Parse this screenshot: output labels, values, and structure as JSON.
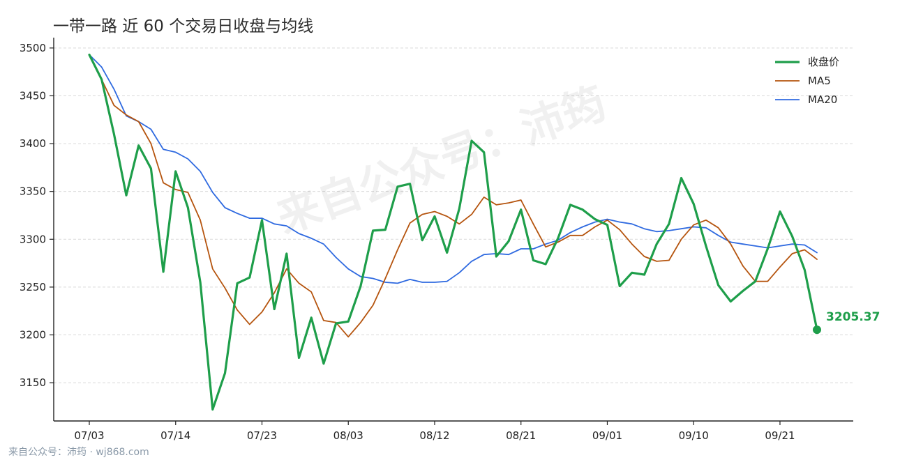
{
  "chart_data": {
    "type": "line",
    "title": "一带一路 近 60 个交易日收盘与均线",
    "xlabel": "",
    "ylabel": "",
    "ylim": [
      3110,
      3505
    ],
    "yticks": [
      3150,
      3200,
      3250,
      3300,
      3350,
      3400,
      3450,
      3500
    ],
    "x_ticks": [
      {
        "index": 0,
        "label": "07/03"
      },
      {
        "index": 7,
        "label": "07/14"
      },
      {
        "index": 14,
        "label": "07/23"
      },
      {
        "index": 21,
        "label": "08/03"
      },
      {
        "index": 28,
        "label": "08/12"
      },
      {
        "index": 35,
        "label": "08/21"
      },
      {
        "index": 42,
        "label": "09/01"
      },
      {
        "index": 49,
        "label": "09/10"
      },
      {
        "index": 56,
        "label": "09/21"
      }
    ],
    "grid": "horizontal dashed",
    "legend_position": "top-right",
    "series": [
      {
        "name": "收盘价",
        "color": "#1e9e4a",
        "values": [
          3493,
          3467,
          3410,
          3346,
          3398,
          3374,
          3266,
          3371,
          3333,
          3255,
          3122,
          3160,
          3254,
          3260,
          3320,
          3227,
          3285,
          3176,
          3218,
          3170,
          3212,
          3214,
          3251,
          3309,
          3310,
          3355,
          3358,
          3299,
          3324,
          3286,
          3332,
          3403,
          3391,
          3282,
          3298,
          3331,
          3278,
          3274,
          3301,
          3336,
          3331,
          3321,
          3315,
          3251,
          3265,
          3263,
          3295,
          3316,
          3364,
          3337,
          3293,
          3252,
          3235,
          3246,
          3256,
          3290,
          3329,
          3303,
          3268,
          3205.37
        ]
      },
      {
        "name": "MA5",
        "color": "#b5540e",
        "values": [
          3493,
          3467,
          3440,
          3430,
          3423,
          3400,
          3359,
          3352,
          3349,
          3320,
          3269,
          3249,
          3226,
          3211,
          3224,
          3244,
          3269,
          3254,
          3245,
          3215,
          3213,
          3198,
          3213,
          3231,
          3259,
          3289,
          3317,
          3326,
          3329,
          3324,
          3316,
          3326,
          3344,
          3336,
          3338,
          3341,
          3316,
          3292,
          3297,
          3304,
          3304,
          3313,
          3320,
          3310,
          3295,
          3282,
          3277,
          3278,
          3300,
          3315,
          3320,
          3312,
          3295,
          3272,
          3256,
          3256,
          3271,
          3285,
          3289,
          3279
        ]
      },
      {
        "name": "MA20",
        "color": "#2f6ae0",
        "values": [
          3493,
          3480,
          3457,
          3429,
          3423,
          3415,
          3394,
          3391,
          3384,
          3371,
          3349,
          3333,
          3327,
          3322,
          3322,
          3316,
          3314,
          3306,
          3301,
          3295,
          3281,
          3269,
          3261,
          3259,
          3255,
          3254,
          3258,
          3255,
          3255,
          3256,
          3265,
          3277,
          3284,
          3285,
          3284,
          3290,
          3290,
          3295,
          3299,
          3307,
          3313,
          3318,
          3321,
          3318,
          3316,
          3311,
          3308,
          3309,
          3311,
          3313,
          3312,
          3304,
          3297,
          3295,
          3293,
          3291,
          3293,
          3295,
          3294,
          3286
        ]
      }
    ],
    "annotations": [
      {
        "text": "3205.37",
        "index": 59,
        "value": 3205.37
      }
    ]
  },
  "watermark": "来自公众号：沛筠",
  "footer": "来自公众号：沛筠 · wj868.com"
}
